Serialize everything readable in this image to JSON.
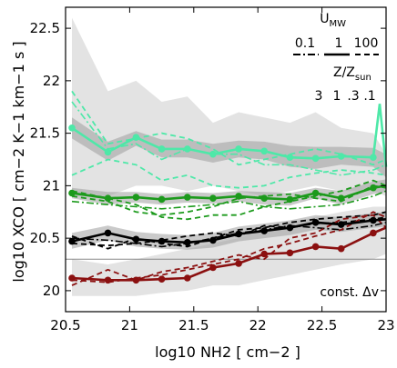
{
  "chart_data": {
    "type": "line",
    "xlabel": "log10 NH2 [ cm−2 ]",
    "ylabel": "log10 XCO [ cm−2 K−1 km−1 s ]",
    "xlim": [
      20.5,
      23.0
    ],
    "ylim": [
      19.8,
      22.7
    ],
    "x_ticks": [
      "20.5",
      "21",
      "21.5",
      "22",
      "22.5",
      "23"
    ],
    "y_ticks": [
      "20",
      "20.5",
      "21",
      "21.5",
      "22",
      "22.5"
    ],
    "legend": {
      "umw_title": "U",
      "umw_sub": "MW",
      "umw_values": [
        "0.1",
        "1",
        "100"
      ],
      "z_title": "Z/Z",
      "z_sub": "sun",
      "z_values": [
        "3",
        "1",
        ".3",
        ".1"
      ]
    },
    "annotation": "const. Δv",
    "reference_line": {
      "y": 20.3
    },
    "x": [
      20.55,
      20.83,
      21.05,
      21.25,
      21.45,
      21.65,
      21.85,
      22.05,
      22.25,
      22.45,
      22.65,
      22.9,
      23.0
    ],
    "series": [
      {
        "name": ".1",
        "color": "#4ee8a8",
        "band_color": "#c8c8c8",
        "solid": [
          21.55,
          21.32,
          21.46,
          21.35,
          21.35,
          21.3,
          21.35,
          21.33,
          21.27,
          21.26,
          21.28,
          21.27,
          21.18
        ],
        "solid_end": [
          22.95,
          21.78
        ],
        "band_outer": {
          "upper": [
            22.6,
            21.9,
            22.0,
            21.8,
            21.85,
            21.6,
            21.7,
            21.65,
            21.6,
            21.7,
            21.55,
            21.5,
            21.3
          ],
          "lower": [
            20.9,
            20.9,
            21.0,
            21.0,
            20.95,
            21.0,
            20.95,
            20.9,
            20.95,
            21.0,
            20.95,
            20.95,
            20.9
          ]
        },
        "band_inner": {
          "upper": [
            21.65,
            21.42,
            21.52,
            21.44,
            21.44,
            21.4,
            21.43,
            21.42,
            21.38,
            21.37,
            21.37,
            21.36,
            21.3
          ],
          "lower": [
            21.45,
            21.24,
            21.38,
            21.27,
            21.27,
            21.22,
            21.27,
            21.25,
            21.18,
            21.16,
            21.2,
            21.18,
            21.08
          ]
        },
        "dashed": [
          [
            21.1,
            21.25,
            21.2,
            21.05,
            21.1,
            21.0,
            20.98,
            21.0,
            21.08,
            21.12,
            21.15,
            21.12,
            21.1
          ],
          [
            21.9,
            21.4,
            21.45,
            21.5,
            21.45,
            21.35,
            21.2,
            21.25,
            21.3,
            21.35,
            21.3,
            21.2,
            21.25
          ]
        ],
        "dashdot": [
          [
            21.8,
            21.35,
            21.4,
            21.25,
            21.35,
            21.3,
            21.3,
            21.2,
            21.2,
            21.15,
            21.1,
            21.15,
            21.2
          ]
        ]
      },
      {
        "name": ".3",
        "color": "#1c9a1c",
        "band_color": "#b5b5b5",
        "solid": [
          20.93,
          20.88,
          20.89,
          20.87,
          20.89,
          20.88,
          20.9,
          20.88,
          20.87,
          20.93,
          20.88,
          20.98,
          21.0
        ],
        "band_inner": {
          "upper": [
            20.98,
            20.94,
            20.94,
            20.92,
            20.94,
            20.93,
            20.95,
            20.94,
            20.93,
            20.98,
            20.95,
            21.04,
            21.06
          ],
          "lower": [
            20.88,
            20.82,
            20.84,
            20.82,
            20.84,
            20.83,
            20.85,
            20.82,
            20.81,
            20.88,
            20.82,
            20.92,
            20.94
          ]
        },
        "dashed": [
          [
            20.95,
            20.88,
            20.82,
            20.7,
            20.68,
            20.72,
            20.72,
            20.8,
            20.85,
            20.9,
            20.95,
            21.05,
            21.0
          ],
          [
            20.9,
            20.85,
            20.75,
            20.72,
            20.75,
            20.8,
            20.88,
            20.9,
            20.92,
            20.88,
            20.85,
            21.0,
            20.98
          ]
        ],
        "dashdot": [
          [
            20.85,
            20.82,
            20.8,
            20.78,
            20.8,
            20.82,
            20.85,
            20.8,
            20.78,
            20.8,
            20.82,
            20.9,
            20.95
          ]
        ]
      },
      {
        "name": "1",
        "color": "#000000",
        "band_color": "#b5b5b5",
        "solid": [
          20.47,
          20.55,
          20.49,
          20.47,
          20.46,
          20.48,
          20.54,
          20.57,
          20.6,
          20.65,
          20.63,
          20.67,
          20.68
        ],
        "band_inner": {
          "upper": [
            20.55,
            20.62,
            20.56,
            20.54,
            20.53,
            20.55,
            20.61,
            20.64,
            20.67,
            20.72,
            20.7,
            20.74,
            20.75
          ],
          "lower": [
            20.4,
            20.48,
            20.42,
            20.4,
            20.39,
            20.41,
            20.47,
            20.5,
            20.53,
            20.58,
            20.56,
            20.6,
            20.61
          ]
        },
        "dashed": [
          [
            20.52,
            20.4,
            20.5,
            20.45,
            20.42,
            20.5,
            20.58,
            20.6,
            20.65,
            20.68,
            20.7,
            20.72,
            20.75
          ],
          [
            20.45,
            20.43,
            20.45,
            20.48,
            20.52,
            20.55,
            20.52,
            20.62,
            20.6,
            20.64,
            20.65,
            20.68,
            20.7
          ]
        ],
        "dashdot": [
          [
            20.5,
            20.48,
            20.45,
            20.42,
            20.45,
            20.5,
            20.55,
            20.58,
            20.62,
            20.6,
            20.58,
            20.62,
            20.65
          ]
        ]
      },
      {
        "name": "3",
        "color": "#8b1010",
        "band_color": "#c8c8c8",
        "solid": [
          20.12,
          20.1,
          20.1,
          20.11,
          20.12,
          20.22,
          20.26,
          20.35,
          20.36,
          20.42,
          20.4,
          20.55,
          20.6
        ],
        "band_outer": {
          "upper": [
            20.3,
            20.25,
            20.3,
            20.35,
            20.4,
            20.45,
            20.5,
            20.6,
            20.65,
            20.7,
            20.75,
            20.8,
            20.8
          ],
          "lower": [
            19.95,
            19.95,
            19.95,
            19.98,
            20.0,
            20.05,
            20.05,
            20.1,
            20.15,
            20.2,
            20.25,
            20.3,
            20.35
          ]
        },
        "dashed": [
          [
            20.05,
            20.2,
            20.1,
            20.18,
            20.22,
            20.28,
            20.34,
            20.3,
            20.5,
            20.55,
            20.68,
            20.72,
            20.6
          ],
          [
            20.1,
            20.08,
            20.12,
            20.15,
            20.2,
            20.25,
            20.3,
            20.4,
            20.45,
            20.52,
            20.58,
            20.75,
            20.7
          ]
        ]
      }
    ]
  }
}
